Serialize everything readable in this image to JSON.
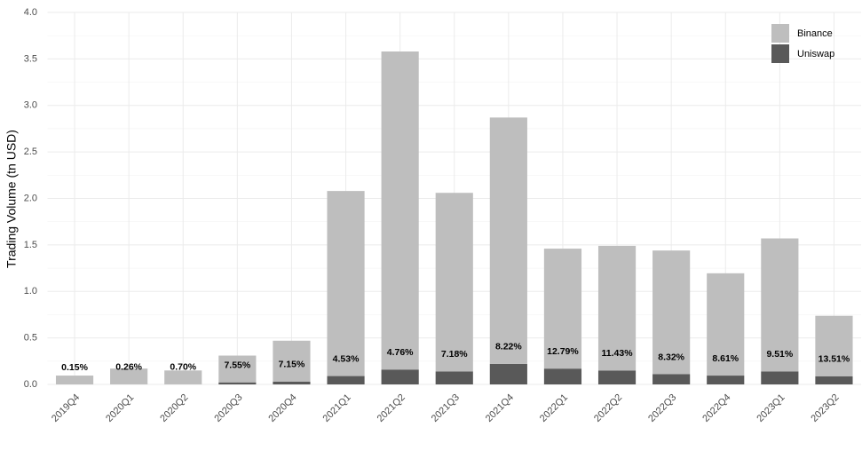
{
  "chart_data": {
    "type": "stacked_bar",
    "y_label": "Trading Volume (tn USD)",
    "categories": [
      "2019Q4",
      "2020Q1",
      "2020Q2",
      "2020Q3",
      "2020Q4",
      "2021Q1",
      "2021Q2",
      "2021Q3",
      "2021Q4",
      "2022Q1",
      "2022Q2",
      "2022Q3",
      "2022Q4",
      "2023Q1",
      "2023Q2"
    ],
    "series": [
      {
        "name": "Uniswap",
        "color": "#595959",
        "values": [
          0.0001,
          0.0004,
          0.001,
          0.022,
          0.031,
          0.09,
          0.16,
          0.14,
          0.22,
          0.17,
          0.15,
          0.11,
          0.095,
          0.14,
          0.088
        ]
      },
      {
        "name": "Binance",
        "color": "#bebebe",
        "values": [
          0.095,
          0.17,
          0.149,
          0.288,
          0.439,
          1.99,
          3.42,
          1.92,
          2.65,
          1.29,
          1.34,
          1.33,
          1.1,
          1.43,
          0.65
        ]
      }
    ],
    "annotations": [
      "0.15%",
      "0.26%",
      "0.70%",
      "7.55%",
      "7.15%",
      "4.53%",
      "4.76%",
      "7.18%",
      "8.22%",
      "12.79%",
      "11.43%",
      "8.32%",
      "8.61%",
      "9.51%",
      "13.51%"
    ],
    "ylim": [
      0,
      4.0
    ],
    "yticks": [
      {
        "value": 0,
        "label": "0.0"
      },
      {
        "value": 0.5,
        "label": "0.5"
      },
      {
        "value": 1,
        "label": "1.0"
      },
      {
        "value": 1.5,
        "label": "1.5"
      },
      {
        "value": 2,
        "label": "2.0"
      },
      {
        "value": 2.5,
        "label": "2.5"
      },
      {
        "value": 3,
        "label": "3.0"
      },
      {
        "value": 3.5,
        "label": "3.5"
      },
      {
        "value": 4,
        "label": "4.0"
      }
    ],
    "grid": true,
    "legend": "top-right"
  }
}
